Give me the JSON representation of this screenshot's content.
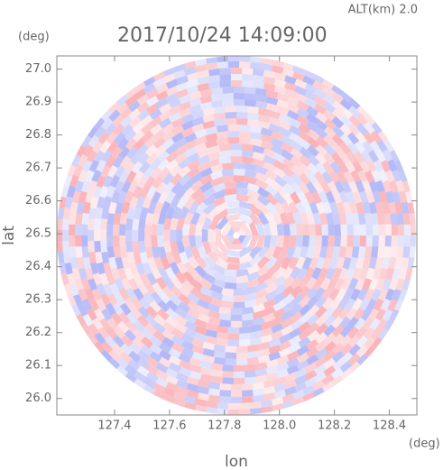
{
  "chart_data": {
    "type": "radar-ppi",
    "title": "2017/10/24 14:09:00",
    "subtitle": "ALT(km) 2.0",
    "x_label": "lon",
    "y_label": "lat",
    "x_unit": "(deg)",
    "y_unit": "(deg)",
    "xlim": [
      127.19,
      128.5
    ],
    "xticks": [
      127.4,
      127.6,
      127.8,
      {
        "value": 128,
        "label": "128.0"
      },
      128.2,
      128.4
    ],
    "ylim": [
      25.95,
      27.04
    ],
    "yticks": [
      {
        "value": 26,
        "label": "26.0"
      },
      26.1,
      26.2,
      26.3,
      26.4,
      26.5,
      26.6,
      26.7,
      26.8,
      26.9,
      {
        "value": 27,
        "label": "27.0"
      }
    ]
  }
}
